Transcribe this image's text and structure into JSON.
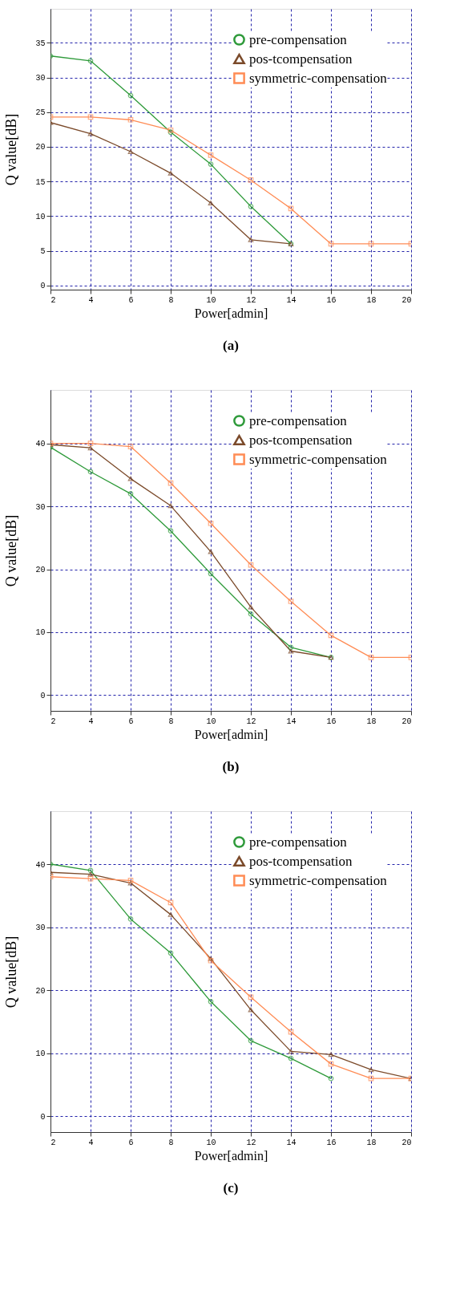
{
  "chart_data": [
    {
      "type": "line",
      "title": "(a)",
      "xlabel": "Power[admin]",
      "ylabel": "Q value[dB]",
      "x": [
        2,
        4,
        6,
        8,
        10,
        12,
        14,
        16,
        18,
        20
      ],
      "xlim": [
        2,
        20
      ],
      "xticks": [
        2,
        4,
        6,
        8,
        10,
        12,
        14,
        16,
        18,
        20
      ],
      "ylim": [
        -0.6,
        39.9
      ],
      "yticks": [
        0,
        5,
        10,
        15,
        20,
        25,
        30,
        35
      ],
      "grid": true,
      "legend": "top right",
      "line_style": "solid",
      "series": [
        {
          "name": "pre-compensation",
          "color": "#2e9a3a",
          "marker": "circle",
          "values": [
            33.1,
            32.4,
            27.4,
            22.1,
            17.5,
            11.4,
            6.0,
            null,
            null,
            null
          ]
        },
        {
          "name": "pos-tcompensation",
          "color": "#7b4a2a",
          "marker": "triangle",
          "values": [
            23.5,
            21.9,
            19.3,
            16.2,
            11.9,
            6.6,
            6.0,
            null,
            null,
            null
          ]
        },
        {
          "name": "symmetric-compensation",
          "color": "#ff8c55",
          "marker": "square",
          "values": [
            24.3,
            24.3,
            23.9,
            22.4,
            18.8,
            15.2,
            11.1,
            6.0,
            6.0,
            6.0
          ]
        }
      ]
    },
    {
      "type": "line",
      "title": "(b)",
      "xlabel": "Power[admin]",
      "ylabel": "Q value[dB]",
      "x": [
        2,
        4,
        6,
        8,
        10,
        12,
        14,
        16,
        18,
        20
      ],
      "xlim": [
        2,
        20
      ],
      "xticks": [
        2,
        4,
        6,
        8,
        10,
        12,
        14,
        16,
        18,
        20
      ],
      "ylim": [
        -2.5,
        48.5
      ],
      "yticks": [
        0,
        10,
        20,
        30,
        40
      ],
      "grid": true,
      "legend": "top right",
      "line_style": "solid",
      "series": [
        {
          "name": "pre-compensation",
          "color": "#2e9a3a",
          "marker": "circle",
          "values": [
            39.4,
            35.5,
            32.0,
            26.1,
            19.3,
            12.9,
            7.6,
            6.0,
            null,
            null
          ]
        },
        {
          "name": "pos-tcompensation",
          "color": "#7b4a2a",
          "marker": "triangle",
          "values": [
            39.8,
            39.3,
            34.4,
            30.1,
            22.8,
            14.0,
            7.0,
            6.0,
            null,
            null
          ]
        },
        {
          "name": "symmetric-compensation",
          "color": "#ff8c55",
          "marker": "square",
          "values": [
            40.0,
            40.0,
            39.5,
            33.7,
            27.3,
            20.7,
            14.9,
            9.5,
            6.0,
            6.0
          ]
        }
      ]
    },
    {
      "type": "line",
      "title": "(c)",
      "xlabel": "Power[admin]",
      "ylabel": "Q value[dB]",
      "x": [
        2,
        4,
        6,
        8,
        10,
        12,
        14,
        16,
        18,
        20
      ],
      "xlim": [
        2,
        20
      ],
      "xticks": [
        2,
        4,
        6,
        8,
        10,
        12,
        14,
        16,
        18,
        20
      ],
      "ylim": [
        -2.5,
        48.4
      ],
      "yticks": [
        0,
        10,
        20,
        30,
        40
      ],
      "grid": true,
      "legend": "top right",
      "line_style": "solid",
      "series": [
        {
          "name": "pre-compensation",
          "color": "#2e9a3a",
          "marker": "circle",
          "values": [
            40.0,
            39.0,
            31.3,
            25.9,
            18.2,
            12.0,
            9.2,
            6.0,
            null,
            null
          ]
        },
        {
          "name": "pos-tcompensation",
          "color": "#7b4a2a",
          "marker": "triangle",
          "values": [
            38.7,
            38.4,
            37.0,
            32.0,
            25.0,
            16.9,
            10.3,
            9.8,
            7.4,
            6.0
          ]
        },
        {
          "name": "symmetric-compensation",
          "color": "#ff8c55",
          "marker": "square",
          "values": [
            38.0,
            37.7,
            37.4,
            33.9,
            24.7,
            18.9,
            13.4,
            8.3,
            6.0,
            6.0
          ]
        }
      ]
    }
  ]
}
